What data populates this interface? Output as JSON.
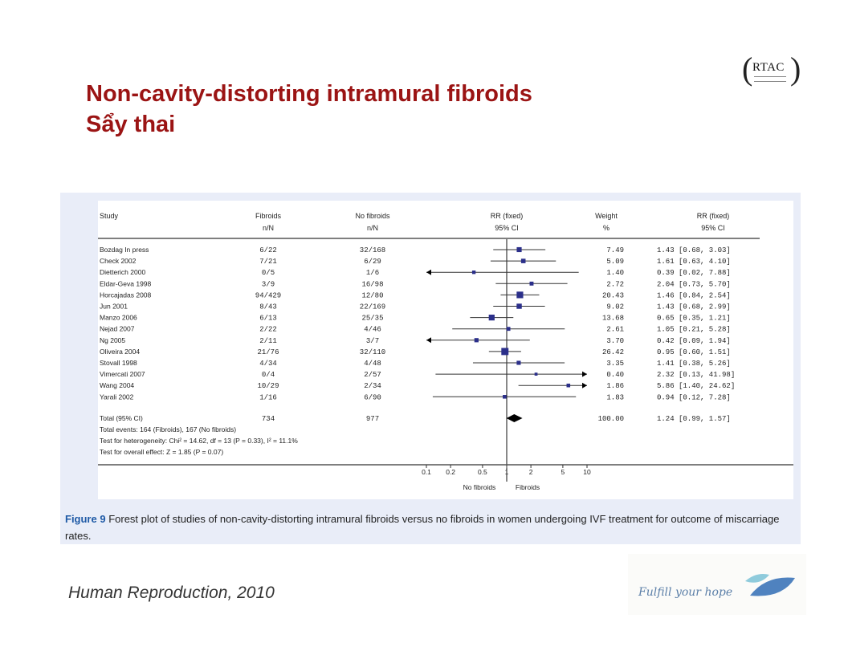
{
  "slide": {
    "title_line1": "Non-cavity-distorting intramural fibroids",
    "title_line2": "Sẩy thai",
    "logo_text": "RTAC",
    "source": "Human Reproduction, 2010",
    "brand_tagline": "Fulfill your hope",
    "caption_label": "Figure 9",
    "caption_text": " Forest plot of studies of non-cavity-distorting intramural fibroids versus no fibroids in women undergoing IVF treatment for outcome of miscarriage rates."
  },
  "chart_data": {
    "type": "forest",
    "headers": {
      "study": "Study",
      "fibroids": "Fibroids",
      "fibroids_sub": "n/N",
      "nofibroids": "No fibroids",
      "nofibroids_sub": "n/N",
      "rr": "RR (fixed)",
      "rr_sub": "95% CI",
      "weight": "Weight",
      "weight_sub": "%",
      "rr2": "RR (fixed)",
      "rr2_sub": "95% CI"
    },
    "studies": [
      {
        "name": "Bozdag In press",
        "fibroids": "6/22",
        "nofibroids": "32/168",
        "weight": 7.49,
        "weight_text": "7.49",
        "rr": 1.43,
        "lo": 0.68,
        "hi": 3.03,
        "rr_text": "1.43 [0.68, 3.03]"
      },
      {
        "name": "Check 2002",
        "fibroids": "7/21",
        "nofibroids": "6/29",
        "weight": 5.09,
        "weight_text": "5.09",
        "rr": 1.61,
        "lo": 0.63,
        "hi": 4.1,
        "rr_text": "1.61 [0.63, 4.10]"
      },
      {
        "name": "Dietterich 2000",
        "fibroids": "0/5",
        "nofibroids": "1/6",
        "weight": 1.4,
        "weight_text": "1.40",
        "rr": 0.39,
        "lo": 0.02,
        "hi": 7.88,
        "rr_text": "0.39 [0.02, 7.88]"
      },
      {
        "name": "Eldar-Geva 1998",
        "fibroids": "3/9",
        "nofibroids": "16/98",
        "weight": 2.72,
        "weight_text": "2.72",
        "rr": 2.04,
        "lo": 0.73,
        "hi": 5.7,
        "rr_text": "2.04 [0.73, 5.70]"
      },
      {
        "name": "Horcajadas 2008",
        "fibroids": "94/429",
        "nofibroids": "12/80",
        "weight": 20.43,
        "weight_text": "20.43",
        "rr": 1.46,
        "lo": 0.84,
        "hi": 2.54,
        "rr_text": "1.46 [0.84, 2.54]"
      },
      {
        "name": "Jun 2001",
        "fibroids": "8/43",
        "nofibroids": "22/169",
        "weight": 9.02,
        "weight_text": "9.02",
        "rr": 1.43,
        "lo": 0.68,
        "hi": 2.99,
        "rr_text": "1.43 [0.68, 2.99]"
      },
      {
        "name": "Manzo 2006",
        "fibroids": "6/13",
        "nofibroids": "25/35",
        "weight": 13.68,
        "weight_text": "13.68",
        "rr": 0.65,
        "lo": 0.35,
        "hi": 1.21,
        "rr_text": "0.65 [0.35, 1.21]"
      },
      {
        "name": "Nejad 2007",
        "fibroids": "2/22",
        "nofibroids": "4/46",
        "weight": 2.61,
        "weight_text": "2.61",
        "rr": 1.05,
        "lo": 0.21,
        "hi": 5.28,
        "rr_text": "1.05 [0.21, 5.28]"
      },
      {
        "name": "Ng 2005",
        "fibroids": "2/11",
        "nofibroids": "3/7",
        "weight": 3.7,
        "weight_text": "3.70",
        "rr": 0.42,
        "lo": 0.09,
        "hi": 1.94,
        "rr_text": "0.42 [0.09, 1.94]"
      },
      {
        "name": "Oliveira 2004",
        "fibroids": "21/76",
        "nofibroids": "32/110",
        "weight": 26.42,
        "weight_text": "26.42",
        "rr": 0.95,
        "lo": 0.6,
        "hi": 1.51,
        "rr_text": "0.95 [0.60, 1.51]"
      },
      {
        "name": "Stovall 1998",
        "fibroids": "4/34",
        "nofibroids": "4/48",
        "weight": 3.35,
        "weight_text": "3.35",
        "rr": 1.41,
        "lo": 0.38,
        "hi": 5.26,
        "rr_text": "1.41 [0.38, 5.26]"
      },
      {
        "name": "Vimercati 2007",
        "fibroids": "0/4",
        "nofibroids": "2/57",
        "weight": 0.4,
        "weight_text": "0.40",
        "rr": 2.32,
        "lo": 0.13,
        "hi": 41.98,
        "rr_text": "2.32 [0.13, 41.98]"
      },
      {
        "name": "Wang 2004",
        "fibroids": "10/29",
        "nofibroids": "2/34",
        "weight": 1.86,
        "weight_text": "1.86",
        "rr": 5.86,
        "lo": 1.4,
        "hi": 24.62,
        "rr_text": "5.86 [1.40, 24.62]"
      },
      {
        "name": "Yarali 2002",
        "fibroids": "1/16",
        "nofibroids": "6/90",
        "weight": 1.83,
        "weight_text": "1.83",
        "rr": 0.94,
        "lo": 0.12,
        "hi": 7.28,
        "rr_text": "0.94 [0.12, 7.28]"
      }
    ],
    "total": {
      "name": "Total (95% CI)",
      "fibroids": "734",
      "nofibroids": "977",
      "weight_text": "100.00",
      "rr": 1.24,
      "lo": 0.99,
      "hi": 1.57,
      "rr_text": "1.24 [0.99, 1.57]"
    },
    "footnotes": [
      "Total events: 164 (Fibroids), 167 (No fibroids)",
      "Test for heterogeneity: Chi² = 14.62, df = 13 (P = 0.33), I² = 11.1%",
      "Test for overall effect: Z = 1.85 (P = 0.07)"
    ],
    "x_scale": "log",
    "xlim": [
      0.1,
      10
    ],
    "x_ticks": [
      0.1,
      0.2,
      0.5,
      1,
      2,
      5,
      10
    ],
    "x_tick_labels": [
      "0.1",
      "0.2",
      "0.5",
      "1",
      "2",
      "5",
      "10"
    ],
    "favours_left": "No fibroids",
    "favours_right": "Fibroids",
    "colors": {
      "marker": "#2b2f8a",
      "line": "#333333",
      "diamond": "#000000"
    }
  }
}
